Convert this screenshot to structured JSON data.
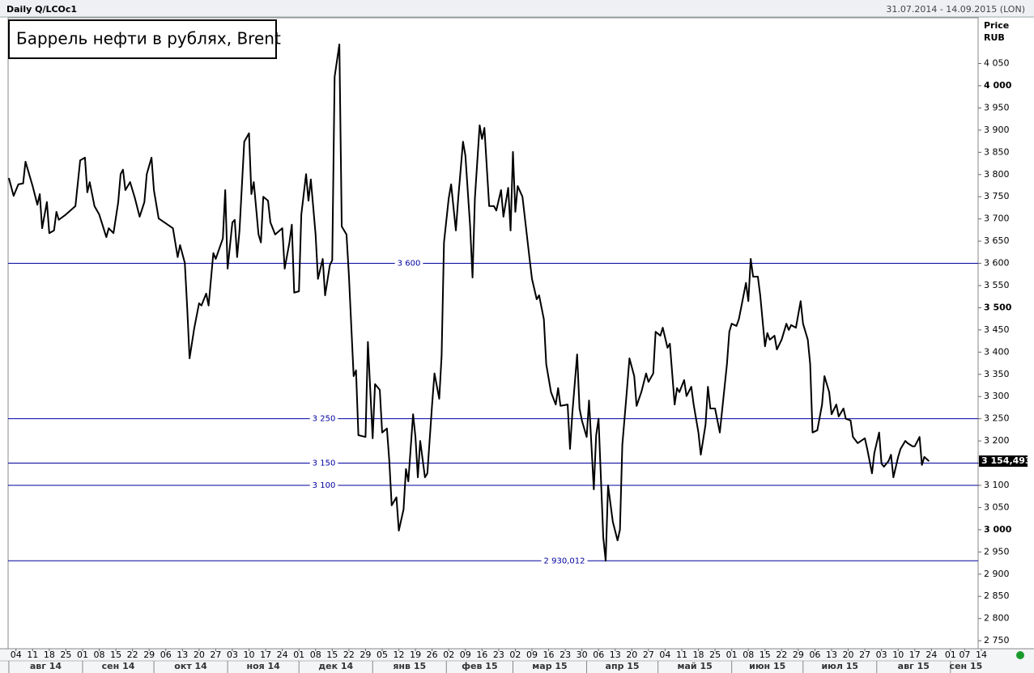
{
  "chart_data": {
    "type": "line",
    "header_left": "Daily Q/LCOc1",
    "header_right": "31.07.2014 - 14.09.2015 (LON)",
    "title": "Баррель нефти в рублях, Brent",
    "y_title": "Price",
    "y_unit": "RUB",
    "xlim": [
      "2014-07-31",
      "2015-09-14"
    ],
    "ylim": [
      2732,
      4153
    ],
    "yticks": [
      {
        "value": 2750,
        "label": "2 750"
      },
      {
        "value": 2800,
        "label": "2 800"
      },
      {
        "value": 2850,
        "label": "2 850"
      },
      {
        "value": 2900,
        "label": "2 900"
      },
      {
        "value": 2950,
        "label": "2 950"
      },
      {
        "value": 3000,
        "label": "3 000"
      },
      {
        "value": 3050,
        "label": "3 050"
      },
      {
        "value": 3100,
        "label": "3 100"
      },
      {
        "value": 3150,
        "label": "3 150"
      },
      {
        "value": 3200,
        "label": "3 200"
      },
      {
        "value": 3250,
        "label": "3 250"
      },
      {
        "value": 3300,
        "label": "3 300"
      },
      {
        "value": 3350,
        "label": "3 350"
      },
      {
        "value": 3400,
        "label": "3 400"
      },
      {
        "value": 3450,
        "label": "3 450"
      },
      {
        "value": 3500,
        "label": "3 500"
      },
      {
        "value": 3550,
        "label": "3 550"
      },
      {
        "value": 3600,
        "label": "3 600"
      },
      {
        "value": 3650,
        "label": "3 650"
      },
      {
        "value": 3700,
        "label": "3 700"
      },
      {
        "value": 3750,
        "label": "3 750"
      },
      {
        "value": 3800,
        "label": "3 800"
      },
      {
        "value": 3850,
        "label": "3 850"
      },
      {
        "value": 3900,
        "label": "3 900"
      },
      {
        "value": 3950,
        "label": "3 950"
      },
      {
        "value": 4000,
        "label": "4 000"
      },
      {
        "value": 4050,
        "label": "4 050"
      }
    ],
    "xticks": [
      {
        "value": "2014-08-04",
        "label": "04"
      },
      {
        "value": "2014-08-11",
        "label": "11"
      },
      {
        "value": "2014-08-18",
        "label": "18"
      },
      {
        "value": "2014-08-25",
        "label": "25"
      },
      {
        "value": "2014-09-01",
        "label": "01"
      },
      {
        "value": "2014-09-08",
        "label": "08"
      },
      {
        "value": "2014-09-15",
        "label": "15"
      },
      {
        "value": "2014-09-22",
        "label": "22"
      },
      {
        "value": "2014-09-29",
        "label": "29"
      },
      {
        "value": "2014-10-06",
        "label": "06"
      },
      {
        "value": "2014-10-13",
        "label": "13"
      },
      {
        "value": "2014-10-20",
        "label": "20"
      },
      {
        "value": "2014-10-27",
        "label": "27"
      },
      {
        "value": "2014-11-03",
        "label": "03"
      },
      {
        "value": "2014-11-10",
        "label": "10"
      },
      {
        "value": "2014-11-17",
        "label": "17"
      },
      {
        "value": "2014-11-24",
        "label": "24"
      },
      {
        "value": "2014-12-01",
        "label": "01"
      },
      {
        "value": "2014-12-08",
        "label": "08"
      },
      {
        "value": "2014-12-15",
        "label": "15"
      },
      {
        "value": "2014-12-22",
        "label": "22"
      },
      {
        "value": "2014-12-29",
        "label": "29"
      },
      {
        "value": "2015-01-05",
        "label": "05"
      },
      {
        "value": "2015-01-12",
        "label": "12"
      },
      {
        "value": "2015-01-19",
        "label": "19"
      },
      {
        "value": "2015-01-26",
        "label": "26"
      },
      {
        "value": "2015-02-02",
        "label": "02"
      },
      {
        "value": "2015-02-09",
        "label": "09"
      },
      {
        "value": "2015-02-16",
        "label": "16"
      },
      {
        "value": "2015-02-23",
        "label": "23"
      },
      {
        "value": "2015-03-02",
        "label": "02"
      },
      {
        "value": "2015-03-09",
        "label": "09"
      },
      {
        "value": "2015-03-16",
        "label": "16"
      },
      {
        "value": "2015-03-23",
        "label": "23"
      },
      {
        "value": "2015-03-30",
        "label": "30"
      },
      {
        "value": "2015-04-06",
        "label": "06"
      },
      {
        "value": "2015-04-13",
        "label": "13"
      },
      {
        "value": "2015-04-20",
        "label": "20"
      },
      {
        "value": "2015-04-27",
        "label": "27"
      },
      {
        "value": "2015-05-04",
        "label": "04"
      },
      {
        "value": "2015-05-11",
        "label": "11"
      },
      {
        "value": "2015-05-18",
        "label": "18"
      },
      {
        "value": "2015-05-25",
        "label": "25"
      },
      {
        "value": "2015-06-01",
        "label": "01"
      },
      {
        "value": "2015-06-08",
        "label": "08"
      },
      {
        "value": "2015-06-15",
        "label": "15"
      },
      {
        "value": "2015-06-22",
        "label": "22"
      },
      {
        "value": "2015-06-29",
        "label": "29"
      },
      {
        "value": "2015-07-06",
        "label": "06"
      },
      {
        "value": "2015-07-13",
        "label": "13"
      },
      {
        "value": "2015-07-20",
        "label": "20"
      },
      {
        "value": "2015-07-27",
        "label": "27"
      },
      {
        "value": "2015-08-03",
        "label": "03"
      },
      {
        "value": "2015-08-10",
        "label": "10"
      },
      {
        "value": "2015-08-17",
        "label": "17"
      },
      {
        "value": "2015-08-24",
        "label": "24"
      },
      {
        "value": "2015-09-01",
        "label": "01"
      },
      {
        "value": "2015-09-07",
        "label": "07"
      },
      {
        "value": "2015-09-14",
        "label": "14"
      }
    ],
    "months": [
      {
        "value": "2014-08",
        "label": "авг 14"
      },
      {
        "value": "2014-09",
        "label": "сен 14"
      },
      {
        "value": "2014-10",
        "label": "окт 14"
      },
      {
        "value": "2014-11",
        "label": "ноя 14"
      },
      {
        "value": "2014-12",
        "label": "дек 14"
      },
      {
        "value": "2015-01",
        "label": "янв 15"
      },
      {
        "value": "2015-02",
        "label": "фев 15"
      },
      {
        "value": "2015-03",
        "label": "мар 15"
      },
      {
        "value": "2015-04",
        "label": "апр 15"
      },
      {
        "value": "2015-05",
        "label": "май 15"
      },
      {
        "value": "2015-06",
        "label": "июн 15"
      },
      {
        "value": "2015-07",
        "label": "июл 15"
      },
      {
        "value": "2015-08",
        "label": "авг 15"
      },
      {
        "value": "2015-09",
        "label": "сен 15"
      }
    ],
    "hlines": [
      {
        "value": 3600,
        "label": "3 600"
      },
      {
        "value": 3250,
        "label": "3 250"
      },
      {
        "value": 3150,
        "label": "3 150"
      },
      {
        "value": 3100,
        "label": "3 100"
      },
      {
        "value": 2930.012,
        "label": "2 930,012"
      }
    ],
    "hline_color": "#0000a0",
    "last_price": {
      "value": 3154.493,
      "label": "3 154,493"
    },
    "x": [
      "2014-08-01",
      "2014-08-03",
      "2014-08-05",
      "2014-08-07",
      "2014-08-08",
      "2014-08-11",
      "2014-08-13",
      "2014-08-14",
      "2014-08-15",
      "2014-08-17",
      "2014-08-18",
      "2014-08-20",
      "2014-08-21",
      "2014-08-22",
      "2014-08-25",
      "2014-08-29",
      "2014-08-31",
      "2014-09-02",
      "2014-09-03",
      "2014-09-04",
      "2014-09-06",
      "2014-09-08",
      "2014-09-11",
      "2014-09-12",
      "2014-09-14",
      "2014-09-16",
      "2014-09-17",
      "2014-09-18",
      "2014-09-19",
      "2014-09-21",
      "2014-09-23",
      "2014-09-25",
      "2014-09-27",
      "2014-09-28",
      "2014-09-30",
      "2014-10-01",
      "2014-10-03",
      "2014-10-09",
      "2014-10-11",
      "2014-10-12",
      "2014-10-14",
      "2014-10-15",
      "2014-10-16",
      "2014-10-18",
      "2014-10-20",
      "2014-10-21",
      "2014-10-23",
      "2014-10-24",
      "2014-10-26",
      "2014-10-27",
      "2014-10-30",
      "2014-10-31",
      "2014-11-01",
      "2014-11-03",
      "2014-11-04",
      "2014-11-05",
      "2014-11-06",
      "2014-11-08",
      "2014-11-10",
      "2014-11-11",
      "2014-11-12",
      "2014-11-14",
      "2014-11-15",
      "2014-11-16",
      "2014-11-18",
      "2014-11-19",
      "2014-11-21",
      "2014-11-24",
      "2014-11-25",
      "2014-11-27",
      "2014-11-28",
      "2014-11-29",
      "2014-12-01",
      "2014-12-02",
      "2014-12-04",
      "2014-12-05",
      "2014-12-06",
      "2014-12-08",
      "2014-12-09",
      "2014-12-11",
      "2014-12-12",
      "2014-12-14",
      "2014-12-15",
      "2014-12-16",
      "2014-12-18",
      "2014-12-19",
      "2014-12-21",
      "2014-12-22",
      "2014-12-24",
      "2014-12-25",
      "2014-12-26",
      "2014-12-29",
      "2014-12-30",
      "2015-01-01",
      "2015-01-02",
      "2015-01-04",
      "2015-01-05",
      "2015-01-07",
      "2015-01-08",
      "2015-01-09",
      "2015-01-11",
      "2015-01-12",
      "2015-01-14",
      "2015-01-15",
      "2015-01-16",
      "2015-01-18",
      "2015-01-19",
      "2015-01-20",
      "2015-01-21",
      "2015-01-23",
      "2015-01-24",
      "2015-01-26",
      "2015-01-27",
      "2015-01-29",
      "2015-01-30",
      "2015-01-31",
      "2015-02-02",
      "2015-02-03",
      "2015-02-05",
      "2015-02-06",
      "2015-02-08",
      "2015-02-09",
      "2015-02-11",
      "2015-02-12",
      "2015-02-13",
      "2015-02-15",
      "2015-02-16",
      "2015-02-17",
      "2015-02-19",
      "2015-02-21",
      "2015-02-22",
      "2015-02-24",
      "2015-02-25",
      "2015-02-27",
      "2015-02-28",
      "2015-03-01",
      "2015-03-02",
      "2015-03-03",
      "2015-03-05",
      "2015-03-08",
      "2015-03-09",
      "2015-03-11",
      "2015-03-12",
      "2015-03-14",
      "2015-03-15",
      "2015-03-17",
      "2015-03-19",
      "2015-03-20",
      "2015-03-21",
      "2015-03-24",
      "2015-03-25",
      "2015-03-26",
      "2015-03-28",
      "2015-03-29",
      "2015-03-30",
      "2015-04-01",
      "2015-04-02",
      "2015-04-04",
      "2015-04-05",
      "2015-04-06",
      "2015-04-08",
      "2015-04-09",
      "2015-04-10",
      "2015-04-12",
      "2015-04-14",
      "2015-04-15",
      "2015-04-16",
      "2015-04-18",
      "2015-04-19",
      "2015-04-21",
      "2015-04-22",
      "2015-04-24",
      "2015-04-26",
      "2015-04-27",
      "2015-04-29",
      "2015-04-30",
      "2015-05-02",
      "2015-05-03",
      "2015-05-05",
      "2015-05-06",
      "2015-05-08",
      "2015-05-09",
      "2015-05-10",
      "2015-05-12",
      "2015-05-13",
      "2015-05-15",
      "2015-05-16",
      "2015-05-18",
      "2015-05-19",
      "2015-05-21",
      "2015-05-22",
      "2015-05-23",
      "2015-05-25",
      "2015-05-26",
      "2015-05-27",
      "2015-05-30",
      "2015-05-31",
      "2015-06-01",
      "2015-06-03",
      "2015-06-04",
      "2015-06-05",
      "2015-06-07",
      "2015-06-08",
      "2015-06-09",
      "2015-06-10",
      "2015-06-12",
      "2015-06-13",
      "2015-06-15",
      "2015-06-16",
      "2015-06-17",
      "2015-06-19",
      "2015-06-20",
      "2015-06-22",
      "2015-06-24",
      "2015-06-25",
      "2015-06-26",
      "2015-06-28",
      "2015-06-30",
      "2015-07-01",
      "2015-07-03",
      "2015-07-04",
      "2015-07-05",
      "2015-07-07",
      "2015-07-09",
      "2015-07-10",
      "2015-07-12",
      "2015-07-13",
      "2015-07-15",
      "2015-07-16",
      "2015-07-18",
      "2015-07-19",
      "2015-07-21",
      "2015-07-22",
      "2015-07-24",
      "2015-07-27",
      "2015-07-28",
      "2015-07-30",
      "2015-07-31",
      "2015-08-02",
      "2015-08-03",
      "2015-08-04",
      "2015-08-06",
      "2015-08-07",
      "2015-08-08",
      "2015-08-10",
      "2015-08-11",
      "2015-08-13",
      "2015-08-14",
      "2015-08-16",
      "2015-08-17",
      "2015-08-19",
      "2015-08-20",
      "2015-08-21",
      "2015-08-23"
    ],
    "series": [
      {
        "name": "Q/LCOc1",
        "color": "#000000",
        "values": [
          3792,
          3752,
          3778,
          3780,
          3829,
          3774,
          3732,
          3756,
          3679,
          3738,
          3668,
          3674,
          3716,
          3698,
          3710,
          3729,
          3832,
          3838,
          3760,
          3783,
          3729,
          3710,
          3659,
          3679,
          3668,
          3738,
          3801,
          3811,
          3765,
          3783,
          3747,
          3705,
          3738,
          3801,
          3838,
          3765,
          3701,
          3679,
          3614,
          3641,
          3601,
          3501,
          3386,
          3455,
          3510,
          3505,
          3532,
          3505,
          3623,
          3610,
          3656,
          3765,
          3588,
          3692,
          3698,
          3614,
          3674,
          3874,
          3893,
          3756,
          3783,
          3665,
          3647,
          3750,
          3741,
          3692,
          3665,
          3679,
          3588,
          3647,
          3687,
          3534,
          3537,
          3710,
          3801,
          3741,
          3789,
          3665,
          3565,
          3610,
          3528,
          3596,
          3607,
          4020,
          4093,
          3683,
          3665,
          3574,
          3346,
          3359,
          3213,
          3209,
          3423,
          3206,
          3328,
          3315,
          3219,
          3228,
          3155,
          3055,
          3073,
          2998,
          3046,
          3137,
          3109,
          3260,
          3209,
          3118,
          3200,
          3118,
          3127,
          3282,
          3352,
          3295,
          3392,
          3647,
          3747,
          3778,
          3674,
          3747,
          3874,
          3843,
          3683,
          3568,
          3747,
          3911,
          3880,
          3905,
          3729,
          3729,
          3719,
          3765,
          3705,
          3770,
          3674,
          3851,
          3716,
          3774,
          3750,
          3610,
          3565,
          3519,
          3528,
          3474,
          3373,
          3310,
          3282,
          3319,
          3279,
          3282,
          3182,
          3264,
          3395,
          3273,
          3246,
          3209,
          3291,
          3091,
          3213,
          3250,
          2982,
          2930.012,
          3100,
          3018,
          2976,
          3000,
          3191,
          3319,
          3386,
          3346,
          3279,
          3310,
          3352,
          3333,
          3352,
          3446,
          3437,
          3455,
          3410,
          3419,
          3282,
          3319,
          3310,
          3337,
          3301,
          3322,
          3282,
          3219,
          3169,
          3237,
          3322,
          3273,
          3273,
          3246,
          3219,
          3373,
          3446,
          3464,
          3459,
          3474,
          3501,
          3556,
          3515,
          3610,
          3570,
          3570,
          3528,
          3413,
          3443,
          3428,
          3437,
          3406,
          3428,
          3464,
          3450,
          3461,
          3455,
          3515,
          3464,
          3428,
          3373,
          3219,
          3224,
          3282,
          3346,
          3310,
          3260,
          3282,
          3255,
          3273,
          3250,
          3246,
          3209,
          3195,
          3206,
          3182,
          3127,
          3173,
          3219,
          3149,
          3142,
          3155,
          3169,
          3118,
          3164,
          3182,
          3200,
          3195,
          3188,
          3188,
          3209,
          3146,
          3164,
          3154.493
        ]
      }
    ]
  }
}
